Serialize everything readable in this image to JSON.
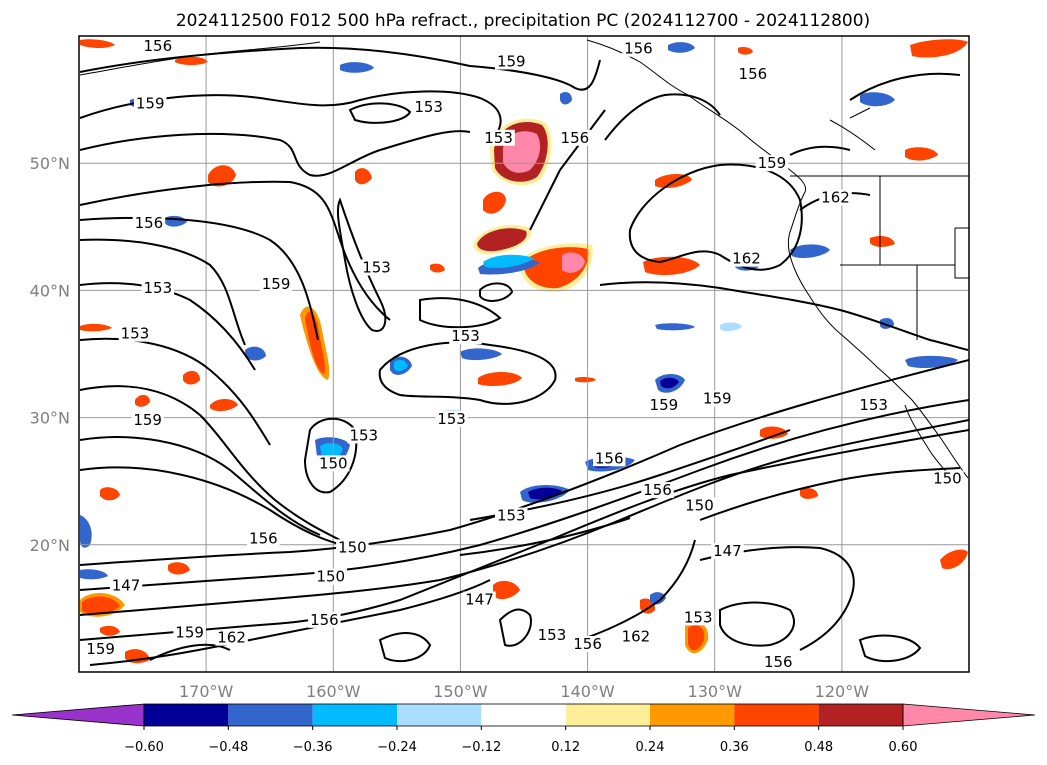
{
  "title": "2024112500 F012 500 hPa refract., precipitation PC (2024112700 - 2024112800)",
  "map": {
    "lon_range": [
      -180,
      -110
    ],
    "lat_range": [
      10,
      60
    ],
    "lon_ticks": [
      -170,
      -160,
      -150,
      -140,
      -130,
      -120
    ],
    "lon_tick_labels": [
      "170°W",
      "160°W",
      "150°W",
      "140°W",
      "130°W",
      "120°W"
    ],
    "lat_ticks": [
      20,
      30,
      40,
      50
    ],
    "lat_tick_labels": [
      "20°N",
      "30°N",
      "40°N",
      "50°N"
    ],
    "grid": true
  },
  "colorbar": {
    "levels": [
      -0.6,
      -0.48,
      -0.36,
      -0.24,
      -0.12,
      0.12,
      0.24,
      0.36,
      0.48,
      0.6
    ],
    "tick_labels": [
      "−0.60",
      "−0.48",
      "−0.36",
      "−0.24",
      "−0.12",
      "0.12",
      "0.24",
      "0.36",
      "0.48",
      "0.60"
    ],
    "colors": [
      "#9933cc",
      "#000099",
      "#3366cc",
      "#00bbff",
      "#aaddff",
      "#ffffff",
      "#ffee99",
      "#ff9900",
      "#ff4400",
      "#b22222",
      "#ff88aa"
    ],
    "extend": "both"
  },
  "contour_labels": [
    {
      "text": "156",
      "lon": -173.8,
      "lat": 59.2
    },
    {
      "text": "159",
      "lon": -174.4,
      "lat": 54.7
    },
    {
      "text": "153",
      "lon": -152.5,
      "lat": 54.4
    },
    {
      "text": "159",
      "lon": -146,
      "lat": 58
    },
    {
      "text": "153",
      "lon": -147,
      "lat": 52
    },
    {
      "text": "156",
      "lon": -141,
      "lat": 52
    },
    {
      "text": "156",
      "lon": -136,
      "lat": 59
    },
    {
      "text": "156",
      "lon": -127,
      "lat": 57
    },
    {
      "text": "159",
      "lon": -125.5,
      "lat": 50
    },
    {
      "text": "162",
      "lon": -120.5,
      "lat": 47.3
    },
    {
      "text": "162",
      "lon": -127.5,
      "lat": 42.5
    },
    {
      "text": "156",
      "lon": -174.5,
      "lat": 45.3
    },
    {
      "text": "153",
      "lon": -173.8,
      "lat": 40.2
    },
    {
      "text": "159",
      "lon": -164.5,
      "lat": 40.5
    },
    {
      "text": "153",
      "lon": -156.6,
      "lat": 41.8
    },
    {
      "text": "153",
      "lon": -175.6,
      "lat": 36.6
    },
    {
      "text": "153",
      "lon": -149.6,
      "lat": 36.4
    },
    {
      "text": "159",
      "lon": -174.6,
      "lat": 29.8
    },
    {
      "text": "153",
      "lon": -157.6,
      "lat": 28.6
    },
    {
      "text": "153",
      "lon": -150.7,
      "lat": 29.9
    },
    {
      "text": "150",
      "lon": -160,
      "lat": 26.4
    },
    {
      "text": "156",
      "lon": -138.3,
      "lat": 26.8
    },
    {
      "text": "159",
      "lon": -134,
      "lat": 31
    },
    {
      "text": "159",
      "lon": -129.8,
      "lat": 31.5
    },
    {
      "text": "153",
      "lon": -117.5,
      "lat": 31
    },
    {
      "text": "150",
      "lon": -111.7,
      "lat": 25.2
    },
    {
      "text": "156",
      "lon": -134.5,
      "lat": 24.3
    },
    {
      "text": "150",
      "lon": -131.2,
      "lat": 23.1
    },
    {
      "text": "153",
      "lon": -146,
      "lat": 22.3
    },
    {
      "text": "156",
      "lon": -165.5,
      "lat": 20.5
    },
    {
      "text": "150",
      "lon": -158.5,
      "lat": 19.8
    },
    {
      "text": "147",
      "lon": -129,
      "lat": 19.5
    },
    {
      "text": "150",
      "lon": -160.2,
      "lat": 17.5
    },
    {
      "text": "147",
      "lon": -176.3,
      "lat": 16.8
    },
    {
      "text": "147",
      "lon": -148.5,
      "lat": 15.7
    },
    {
      "text": "156",
      "lon": -160.7,
      "lat": 14.1
    },
    {
      "text": "159",
      "lon": -171.3,
      "lat": 13.1
    },
    {
      "text": "162",
      "lon": -168,
      "lat": 12.7
    },
    {
      "text": "159",
      "lon": -178.3,
      "lat": 11.8
    },
    {
      "text": "153",
      "lon": -142.8,
      "lat": 12.9
    },
    {
      "text": "156",
      "lon": -140,
      "lat": 12.2
    },
    {
      "text": "162",
      "lon": -136.2,
      "lat": 12.8
    },
    {
      "text": "153",
      "lon": -131.3,
      "lat": 14.3
    },
    {
      "text": "156",
      "lon": -125,
      "lat": 10.8
    }
  ]
}
